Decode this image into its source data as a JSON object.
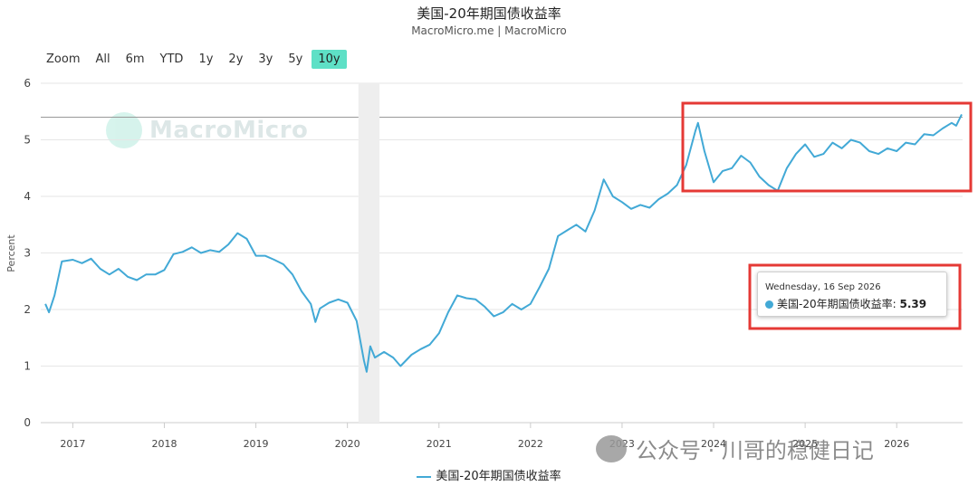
{
  "title": "美国-20年期国债收益率",
  "subtitle": "MacroMicro.me | MacroMicro",
  "zoom": {
    "label": "Zoom",
    "options": [
      "All",
      "6m",
      "YTD",
      "1y",
      "2y",
      "3y",
      "5y",
      "10y"
    ],
    "active": "10y"
  },
  "watermark": "MacroMicro",
  "wechat_watermark": "公众号 · 川哥的稳健日记",
  "tooltip": {
    "date": "Wednesday, 16 Sep 2026",
    "series": "美国-20年期国债收益率",
    "value": "5.39"
  },
  "colors": {
    "line": "#42a9d6",
    "highlight": "#e53935",
    "recession": "#eeeeee",
    "zoom_active": "#5ee0c6"
  },
  "chart_data": {
    "type": "line",
    "ylabel": "Percent",
    "ylim": [
      0,
      6
    ],
    "yticks": [
      0,
      1,
      2,
      3,
      4,
      5,
      6
    ],
    "xticks": [
      "2017",
      "2018",
      "2019",
      "2020",
      "2021",
      "2022",
      "2023",
      "2024",
      "2025",
      "2026"
    ],
    "xlim": [
      2016.65,
      2026.72
    ],
    "reference_line": 5.4,
    "shaded_period": [
      2020.12,
      2020.35
    ],
    "series": [
      {
        "name": "美国-20年期国债收益率",
        "points": [
          [
            2016.7,
            2.1
          ],
          [
            2016.74,
            1.95
          ],
          [
            2016.8,
            2.25
          ],
          [
            2016.88,
            2.85
          ],
          [
            2017.0,
            2.88
          ],
          [
            2017.1,
            2.82
          ],
          [
            2017.2,
            2.9
          ],
          [
            2017.3,
            2.72
          ],
          [
            2017.4,
            2.62
          ],
          [
            2017.5,
            2.72
          ],
          [
            2017.6,
            2.58
          ],
          [
            2017.7,
            2.52
          ],
          [
            2017.8,
            2.62
          ],
          [
            2017.9,
            2.62
          ],
          [
            2018.0,
            2.7
          ],
          [
            2018.1,
            2.98
          ],
          [
            2018.2,
            3.02
          ],
          [
            2018.3,
            3.1
          ],
          [
            2018.4,
            3.0
          ],
          [
            2018.5,
            3.05
          ],
          [
            2018.6,
            3.02
          ],
          [
            2018.7,
            3.15
          ],
          [
            2018.8,
            3.35
          ],
          [
            2018.9,
            3.25
          ],
          [
            2019.0,
            2.95
          ],
          [
            2019.1,
            2.95
          ],
          [
            2019.2,
            2.88
          ],
          [
            2019.3,
            2.8
          ],
          [
            2019.4,
            2.62
          ],
          [
            2019.5,
            2.32
          ],
          [
            2019.6,
            2.1
          ],
          [
            2019.65,
            1.78
          ],
          [
            2019.7,
            2.02
          ],
          [
            2019.8,
            2.12
          ],
          [
            2019.9,
            2.18
          ],
          [
            2020.0,
            2.12
          ],
          [
            2020.1,
            1.8
          ],
          [
            2020.18,
            1.1
          ],
          [
            2020.21,
            0.9
          ],
          [
            2020.25,
            1.35
          ],
          [
            2020.3,
            1.15
          ],
          [
            2020.4,
            1.25
          ],
          [
            2020.5,
            1.15
          ],
          [
            2020.58,
            1.0
          ],
          [
            2020.7,
            1.2
          ],
          [
            2020.8,
            1.3
          ],
          [
            2020.9,
            1.38
          ],
          [
            2021.0,
            1.58
          ],
          [
            2021.1,
            1.95
          ],
          [
            2021.2,
            2.25
          ],
          [
            2021.3,
            2.2
          ],
          [
            2021.4,
            2.18
          ],
          [
            2021.5,
            2.05
          ],
          [
            2021.6,
            1.88
          ],
          [
            2021.7,
            1.95
          ],
          [
            2021.8,
            2.1
          ],
          [
            2021.9,
            2.0
          ],
          [
            2022.0,
            2.1
          ],
          [
            2022.1,
            2.4
          ],
          [
            2022.2,
            2.72
          ],
          [
            2022.3,
            3.3
          ],
          [
            2022.4,
            3.4
          ],
          [
            2022.5,
            3.5
          ],
          [
            2022.6,
            3.38
          ],
          [
            2022.7,
            3.75
          ],
          [
            2022.8,
            4.3
          ],
          [
            2022.9,
            4.0
          ],
          [
            2023.0,
            3.9
          ],
          [
            2023.1,
            3.78
          ],
          [
            2023.2,
            3.85
          ],
          [
            2023.3,
            3.8
          ],
          [
            2023.4,
            3.95
          ],
          [
            2023.5,
            4.05
          ],
          [
            2023.6,
            4.2
          ],
          [
            2023.7,
            4.55
          ],
          [
            2023.8,
            5.15
          ],
          [
            2023.83,
            5.3
          ],
          [
            2023.9,
            4.8
          ],
          [
            2024.0,
            4.25
          ],
          [
            2024.1,
            4.45
          ],
          [
            2024.2,
            4.5
          ],
          [
            2024.3,
            4.72
          ],
          [
            2024.4,
            4.6
          ],
          [
            2024.5,
            4.35
          ],
          [
            2024.6,
            4.2
          ],
          [
            2024.7,
            4.1
          ],
          [
            2024.8,
            4.5
          ],
          [
            2024.9,
            4.75
          ],
          [
            2025.0,
            4.92
          ],
          [
            2025.1,
            4.7
          ],
          [
            2025.2,
            4.75
          ],
          [
            2025.3,
            4.95
          ],
          [
            2025.4,
            4.85
          ],
          [
            2025.5,
            5.0
          ],
          [
            2025.6,
            4.95
          ],
          [
            2025.7,
            4.8
          ],
          [
            2025.8,
            4.75
          ],
          [
            2025.9,
            4.85
          ],
          [
            2026.0,
            4.8
          ],
          [
            2026.1,
            4.95
          ],
          [
            2026.2,
            4.92
          ],
          [
            2026.3,
            5.1
          ],
          [
            2026.4,
            5.08
          ],
          [
            2026.5,
            5.2
          ],
          [
            2026.6,
            5.3
          ],
          [
            2026.65,
            5.25
          ],
          [
            2026.71,
            5.45
          ]
        ]
      }
    ],
    "legend": {
      "position": "bottom-center",
      "label": "美国-20年期国债收益率"
    },
    "grid": true
  }
}
